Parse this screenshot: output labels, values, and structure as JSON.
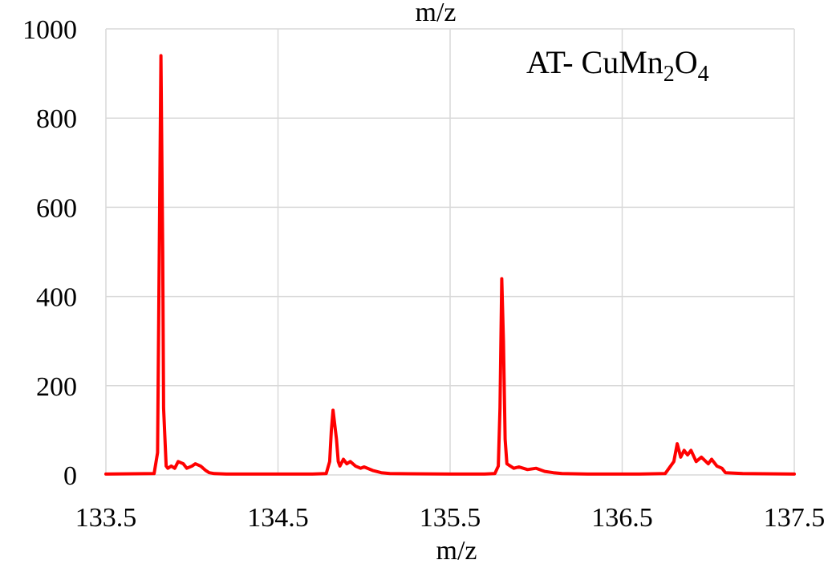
{
  "chart_data": {
    "type": "line",
    "title": "",
    "top_label": "m/z",
    "xlabel": "m/z",
    "ylabel": "",
    "xlim": [
      133.5,
      137.5
    ],
    "ylim": [
      0,
      1000
    ],
    "x_ticks": [
      "133.5",
      "134.5",
      "135.5",
      "136.5",
      "137.5"
    ],
    "y_ticks": [
      "0",
      "200",
      "400",
      "600",
      "800",
      "1000"
    ],
    "grid": true,
    "annotation": {
      "prefix": "AT- CuMn",
      "sub1": "2",
      "mid": "O",
      "sub2": "4"
    },
    "line_color": "#ff0000",
    "series": [
      {
        "x": [
          133.5,
          133.78,
          133.8,
          133.81,
          133.82,
          133.83,
          133.835,
          133.85,
          133.86,
          133.88,
          133.9,
          133.92,
          133.95,
          133.97,
          134.0,
          134.02,
          134.05,
          134.08,
          134.1,
          134.13,
          134.2,
          134.5,
          134.7,
          134.78,
          134.8,
          134.81,
          134.82,
          134.84,
          134.85,
          134.86,
          134.88,
          134.9,
          134.92,
          134.95,
          134.98,
          135.0,
          135.05,
          135.1,
          135.15,
          135.5,
          135.7,
          135.76,
          135.78,
          135.79,
          135.8,
          135.81,
          135.82,
          135.83,
          135.85,
          135.87,
          135.9,
          135.95,
          136.0,
          136.05,
          136.1,
          136.15,
          136.3,
          136.6,
          136.75,
          136.8,
          136.82,
          136.84,
          136.86,
          136.88,
          136.9,
          136.93,
          136.96,
          137.0,
          137.02,
          137.05,
          137.08,
          137.1,
          137.2,
          137.5
        ],
        "y": [
          2,
          3,
          50,
          500,
          940,
          500,
          150,
          20,
          15,
          20,
          15,
          30,
          25,
          15,
          20,
          25,
          20,
          10,
          5,
          3,
          2,
          2,
          2,
          3,
          30,
          100,
          145,
          80,
          30,
          20,
          35,
          25,
          30,
          20,
          15,
          18,
          10,
          5,
          3,
          2,
          2,
          3,
          20,
          150,
          440,
          300,
          80,
          25,
          20,
          15,
          18,
          12,
          15,
          8,
          5,
          3,
          2,
          2,
          3,
          30,
          70,
          40,
          55,
          45,
          55,
          30,
          40,
          25,
          35,
          20,
          15,
          5,
          3,
          2
        ]
      }
    ]
  }
}
